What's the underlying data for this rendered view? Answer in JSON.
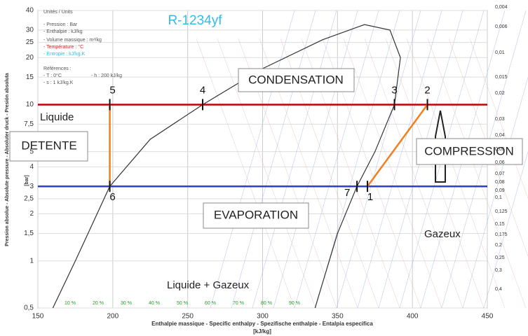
{
  "chart_data": {
    "type": "line",
    "title": "R-1234yf",
    "units_block": [
      "Unités / Units",
      "- Pression : Bar",
      "- Enthalpie : kJ/kg",
      "- Volume massique : m³/kg",
      "- Température : °C",
      "- Entropie : kJ/kg.K",
      "Références :",
      "- T : 0°C",
      "- h : 200 kJ/kg",
      "- s : 1 kJ/kg.K"
    ],
    "x_label": "Enthalpie massique - Specific enthalpy - Spezifische enthalpie - Entalpia especifica",
    "x_unit": "[kJ/kg]",
    "y_label": "Pression absolue - Absolute pressure - Absoluter druck - Presión absoluta",
    "y_unit": "[bar]",
    "xlim": [
      150,
      450
    ],
    "ylim": [
      0.5,
      40
    ],
    "log_y": true,
    "grid": true,
    "xticks": [
      150,
      200,
      250,
      300,
      350,
      400,
      450
    ],
    "yticks": [
      40,
      30,
      25,
      20,
      15,
      10,
      {
        "value": 7.5,
        "label": "7,5"
      },
      5,
      4,
      3,
      {
        "value": 2.5,
        "label": "2,5"
      },
      2,
      {
        "value": 1.5,
        "label": "1,5"
      },
      1,
      {
        "value": 0.5,
        "label": "0,5"
      }
    ],
    "volume_labels": [
      "0,004",
      "0,006",
      "0,01",
      "0,015",
      "0,02",
      "0,03",
      "0,04",
      "0,05",
      "0,06",
      "0,07",
      "0,08",
      "0,09",
      "0,1",
      "0,125",
      "0,15",
      "0,175",
      "0,2",
      "0,25",
      "0,3",
      "0,4"
    ],
    "quality_labels": [
      "10 %",
      "20 %",
      "30 %",
      "40 %",
      "50 %",
      "60 %",
      "70 %",
      "80 %",
      "90 %"
    ],
    "saturation_curve": {
      "color": "#333333",
      "x": [
        160,
        175,
        198,
        225,
        260,
        300,
        340,
        368,
        385,
        392,
        388,
        375,
        363,
        350,
        335
      ],
      "y": [
        0.5,
        1,
        3,
        6,
        10,
        17,
        26,
        32.5,
        30,
        20,
        10,
        5,
        3,
        1.5,
        0.5
      ]
    },
    "series": [
      {
        "name": "CONDENSATION",
        "color": "#c00000",
        "x": [
          150,
          450
        ],
        "y": [
          10,
          10
        ]
      },
      {
        "name": "EVAPORATION",
        "color": "#3040c0",
        "x": [
          150,
          450
        ],
        "y": [
          3,
          3
        ]
      },
      {
        "name": "DETENTE",
        "color": "#f08020",
        "x": [
          198,
          198
        ],
        "y": [
          10,
          3
        ]
      },
      {
        "name": "COMPRESSION",
        "color": "#f08020",
        "x": [
          370,
          410
        ],
        "y": [
          3,
          10
        ]
      }
    ],
    "state_points": {
      "labels": [
        "1",
        "2",
        "3",
        "4",
        "5",
        "6",
        "7"
      ],
      "x": [
        370,
        410,
        388,
        260,
        198,
        198,
        363
      ],
      "y": [
        3,
        10,
        10,
        10,
        10,
        3,
        3
      ]
    },
    "region_labels": [
      "Liquide",
      "Gazeux",
      "Liquide + Gazeux"
    ]
  }
}
